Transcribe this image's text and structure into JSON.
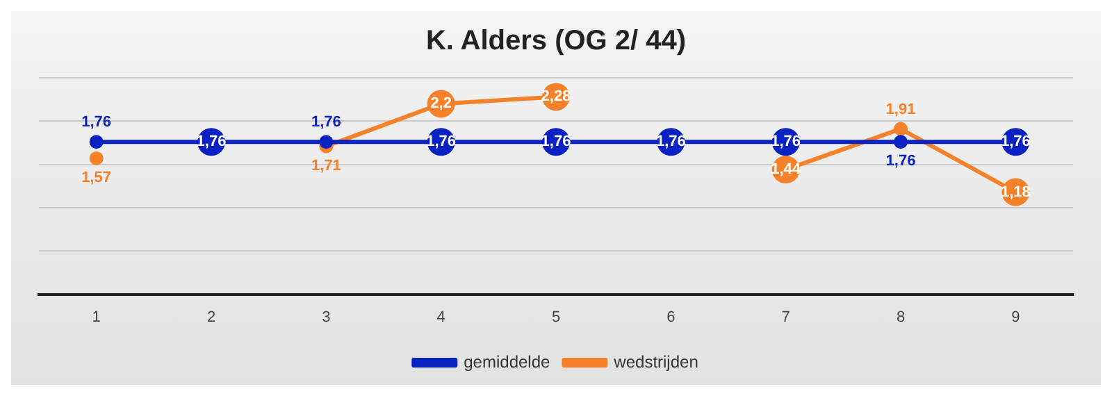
{
  "chart_data": {
    "type": "line",
    "title": "K. Alders (OG 2/ 44)",
    "categories": [
      "1",
      "2",
      "3",
      "4",
      "5",
      "6",
      "7",
      "8",
      "9"
    ],
    "series": [
      {
        "name": "gemiddelde",
        "color": "#0a22c2",
        "values": [
          1.76,
          1.76,
          1.76,
          1.76,
          1.76,
          1.76,
          1.76,
          1.76,
          1.76
        ],
        "value_labels": [
          "1,76",
          "1,76",
          "1,76",
          "1,76",
          "1,76",
          "1,76",
          "1,76",
          "1,76",
          "1,76"
        ]
      },
      {
        "name": "wedstrijden",
        "color": "#f5822a",
        "values": [
          1.57,
          null,
          1.71,
          2.2,
          2.28,
          null,
          1.44,
          1.91,
          1.18
        ],
        "value_labels": [
          "1,57",
          null,
          "1,71",
          "2,2",
          "2,28",
          null,
          "1,44",
          "1,91",
          "1,18"
        ]
      }
    ],
    "ylim": [
      0,
      2.5
    ],
    "yticks": [
      {
        "value": 0,
        "label": null
      },
      {
        "value": 0.5,
        "label": null
      },
      {
        "value": 1,
        "label": null
      },
      {
        "value": 1.5,
        "label": null
      },
      {
        "value": 2,
        "label": null
      },
      {
        "value": 2.5,
        "label": null
      }
    ],
    "tick_labels": "x",
    "grid": "y",
    "legend": "bottom",
    "marker": "circle",
    "line_style": "solid"
  }
}
